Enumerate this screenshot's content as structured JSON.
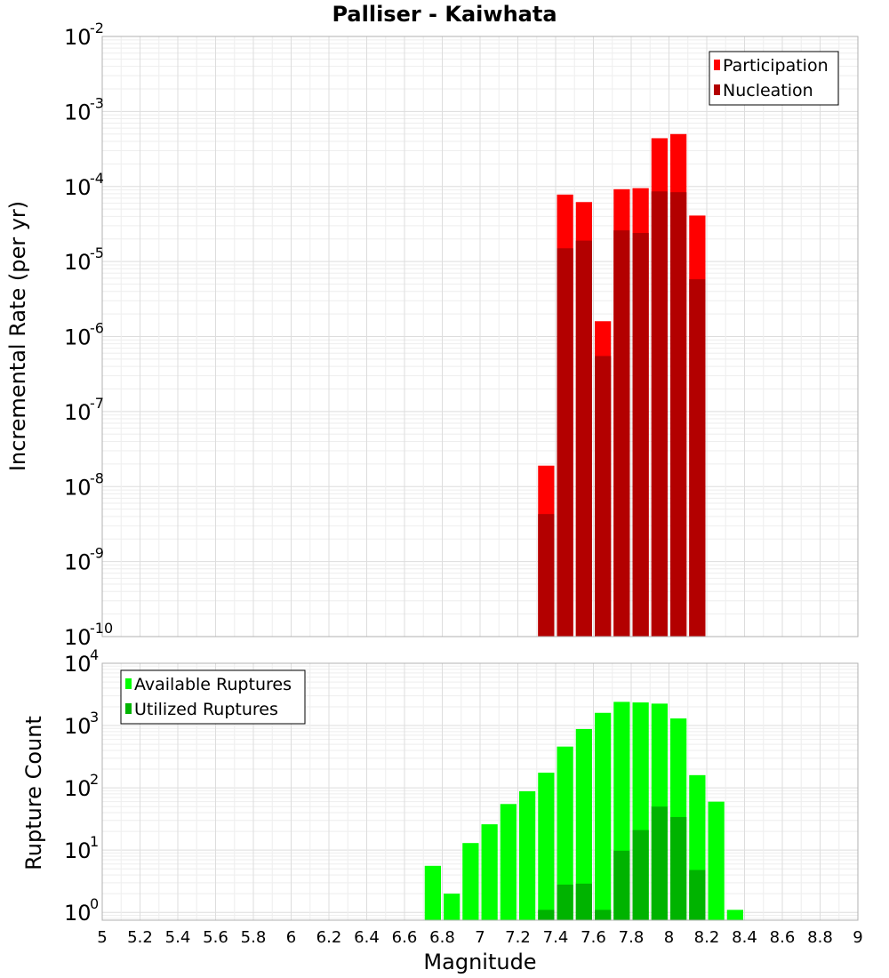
{
  "chart_data": [
    {
      "type": "bar",
      "title": "Palliser - Kaiwhata",
      "xlabel": "Magnitude",
      "ylabel": "Incremental Rate (per yr)",
      "xlim": [
        5,
        9
      ],
      "ylim": [
        1e-10,
        0.01
      ],
      "yscale": "log",
      "grid": true,
      "legend": "top-right",
      "x_ticks": [
        "5",
        "5.2",
        "5.4",
        "5.6",
        "5.8",
        "6",
        "6.2",
        "6.4",
        "6.6",
        "6.8",
        "7",
        "7.2",
        "7.4",
        "7.6",
        "7.8",
        "8",
        "8.2",
        "8.4",
        "8.6",
        "8.8",
        "9"
      ],
      "y_tick_exponents": [
        "-2",
        "-3",
        "-4",
        "-5",
        "-6",
        "-7",
        "-8",
        "-9",
        "-10"
      ],
      "x": [
        7.35,
        7.45,
        7.55,
        7.65,
        7.75,
        7.85,
        7.95,
        8.05,
        8.15
      ],
      "series": [
        {
          "name": "Participation",
          "color": "#ff0000",
          "values": [
            1.9e-08,
            7.8e-05,
            6.2e-05,
            1.6e-06,
            9.2e-05,
            9.5e-05,
            0.00044,
            0.0005,
            4.1e-05
          ]
        },
        {
          "name": "Nucleation",
          "color": "#b30000",
          "values": [
            4.3e-09,
            1.5e-05,
            1.9e-05,
            5.5e-07,
            2.6e-05,
            2.4e-05,
            8.6e-05,
            8.4e-05,
            5.8e-06
          ]
        }
      ]
    },
    {
      "type": "bar",
      "xlabel": "Magnitude",
      "ylabel": "Rupture Count",
      "xlim": [
        5,
        9
      ],
      "ylim": [
        0.75,
        10000
      ],
      "yscale": "log",
      "grid": true,
      "legend": "top-left",
      "y_tick_exponents": [
        "4",
        "3",
        "2",
        "1",
        "0"
      ],
      "x": [
        6.75,
        6.85,
        6.95,
        7.05,
        7.15,
        7.25,
        7.35,
        7.45,
        7.55,
        7.65,
        7.75,
        7.85,
        7.95,
        8.05,
        8.15,
        8.25,
        8.35
      ],
      "series": [
        {
          "name": "Available Ruptures",
          "color": "#00ff00",
          "values": [
            5.6,
            2,
            13,
            26,
            55,
            88,
            175,
            460,
            880,
            1600,
            2400,
            2350,
            2250,
            1300,
            160,
            60,
            1.1
          ]
        },
        {
          "name": "Utilized Ruptures",
          "color": "#00b300",
          "values": [
            null,
            null,
            null,
            null,
            null,
            null,
            1.1,
            2.8,
            2.9,
            1.1,
            9.8,
            21,
            50,
            34,
            4.8,
            null,
            null
          ]
        }
      ]
    }
  ]
}
